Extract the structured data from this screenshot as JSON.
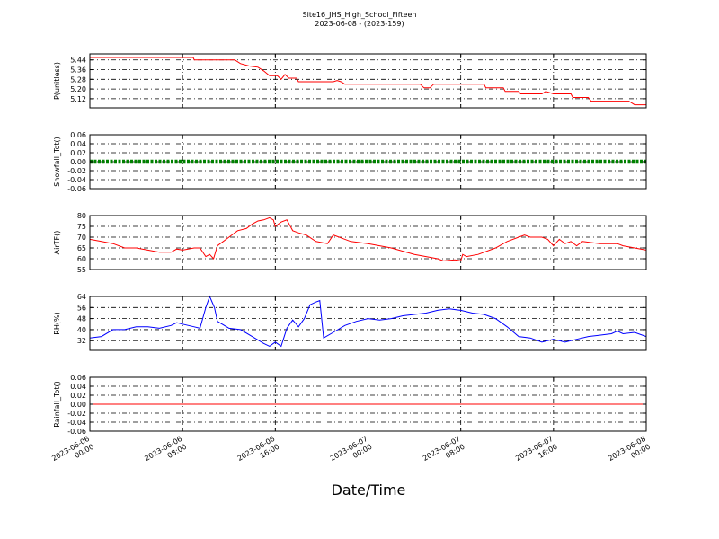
{
  "title": "Site16_JHS_High_School_Fifteen",
  "subtitle": "2023-06-08 - (2023-159)",
  "xlabel": "Date/Time",
  "colors": {
    "red": "#ff0000",
    "green": "#008000",
    "blue": "#0000ff",
    "axes": "#000000"
  },
  "chart_data": {
    "type": "line",
    "x_axis": {
      "start": "2023-06-06 00:00",
      "end": "2023-06-08 00:00",
      "tick_labels": [
        [
          "2023-06-06",
          "00:00"
        ],
        [
          "2023-06-06",
          "08:00"
        ],
        [
          "2023-06-06",
          "16:00"
        ],
        [
          "2023-06-07",
          "00:00"
        ],
        [
          "2023-06-07",
          "08:00"
        ],
        [
          "2023-06-07",
          "16:00"
        ],
        [
          "2023-06-08",
          "00:00"
        ]
      ]
    },
    "panels": [
      {
        "ylabel": "P(unitless)",
        "ylim": [
          5.045,
          5.49
        ],
        "yticks": [
          "5.44",
          "5.36",
          "5.28",
          "5.20",
          "5.12"
        ],
        "grid": true,
        "series": {
          "color": "#ff0000",
          "points": [
            [
              "2023-06-06 00:00",
              5.46
            ],
            [
              "2023-06-06 08:55",
              5.46
            ],
            [
              "2023-06-06 09:00",
              5.44
            ],
            [
              "2023-06-06 12:30",
              5.44
            ],
            [
              "2023-06-06 13:00",
              5.41
            ],
            [
              "2023-06-06 13:45",
              5.39
            ],
            [
              "2023-06-06 14:30",
              5.38
            ],
            [
              "2023-06-06 15:00",
              5.35
            ],
            [
              "2023-06-06 15:30",
              5.31
            ],
            [
              "2023-06-06 16:10",
              5.31
            ],
            [
              "2023-06-06 16:30",
              5.28
            ],
            [
              "2023-06-06 16:50",
              5.32
            ],
            [
              "2023-06-06 17:10",
              5.29
            ],
            [
              "2023-06-06 17:50",
              5.29
            ],
            [
              "2023-06-06 18:00",
              5.26
            ],
            [
              "2023-06-06 21:00",
              5.26
            ],
            [
              "2023-06-06 21:20",
              5.27
            ],
            [
              "2023-06-06 21:40",
              5.26
            ],
            [
              "2023-06-06 22:00",
              5.24
            ],
            [
              "2023-06-07 04:30",
              5.24
            ],
            [
              "2023-06-07 04:50",
              5.21
            ],
            [
              "2023-06-07 05:20",
              5.21
            ],
            [
              "2023-06-07 05:40",
              5.24
            ],
            [
              "2023-06-07 10:00",
              5.24
            ],
            [
              "2023-06-07 10:10",
              5.21
            ],
            [
              "2023-06-07 11:40",
              5.21
            ],
            [
              "2023-06-07 11:50",
              5.18
            ],
            [
              "2023-06-07 13:00",
              5.18
            ],
            [
              "2023-06-07 13:10",
              5.16
            ],
            [
              "2023-06-07 15:00",
              5.16
            ],
            [
              "2023-06-07 15:20",
              5.18
            ],
            [
              "2023-06-07 16:00",
              5.16
            ],
            [
              "2023-06-07 17:30",
              5.16
            ],
            [
              "2023-06-07 17:40",
              5.13
            ],
            [
              "2023-06-07 19:00",
              5.13
            ],
            [
              "2023-06-07 19:15",
              5.1
            ],
            [
              "2023-06-07 22:30",
              5.1
            ],
            [
              "2023-06-07 23:00",
              5.07
            ],
            [
              "2023-06-08 00:00",
              5.07
            ]
          ]
        }
      },
      {
        "ylabel": "Snowfall_Tot()",
        "ylim": [
          -0.06,
          0.06
        ],
        "yticks": [
          "0.06",
          "0.04",
          "0.02",
          "0.00",
          "-0.02",
          "-0.04",
          "-0.06"
        ],
        "grid": true,
        "series": {
          "color": "#008000",
          "style": "markers",
          "points": [
            [
              "2023-06-06 00:00",
              0.0
            ],
            [
              "2023-06-08 00:00",
              0.0
            ]
          ]
        }
      },
      {
        "ylabel": "AirTF()",
        "ylim": [
          55,
          80
        ],
        "yticks": [
          "80",
          "75",
          "70",
          "65",
          "60",
          "55"
        ],
        "grid": true,
        "series": {
          "color": "#ff0000",
          "points": [
            [
              "2023-06-06 00:00",
              69
            ],
            [
              "2023-06-06 01:00",
              68
            ],
            [
              "2023-06-06 02:00",
              67
            ],
            [
              "2023-06-06 03:00",
              65
            ],
            [
              "2023-06-06 04:00",
              65
            ],
            [
              "2023-06-06 05:00",
              64
            ],
            [
              "2023-06-06 06:00",
              63
            ],
            [
              "2023-06-06 07:00",
              63
            ],
            [
              "2023-06-06 07:30",
              64.5
            ],
            [
              "2023-06-06 08:00",
              64
            ],
            [
              "2023-06-06 09:00",
              65
            ],
            [
              "2023-06-06 09:30",
              65
            ],
            [
              "2023-06-06 10:00",
              61
            ],
            [
              "2023-06-06 10:20",
              62
            ],
            [
              "2023-06-06 10:40",
              60
            ],
            [
              "2023-06-06 11:00",
              66
            ],
            [
              "2023-06-06 12:00",
              70
            ],
            [
              "2023-06-06 12:45",
              73
            ],
            [
              "2023-06-06 13:30",
              74
            ],
            [
              "2023-06-06 14:00",
              76
            ],
            [
              "2023-06-06 14:30",
              77.5
            ],
            [
              "2023-06-06 15:00",
              78
            ],
            [
              "2023-06-06 15:30",
              79
            ],
            [
              "2023-06-06 15:50",
              78
            ],
            [
              "2023-06-06 16:00",
              75
            ],
            [
              "2023-06-06 16:30",
              77
            ],
            [
              "2023-06-06 17:00",
              78
            ],
            [
              "2023-06-06 17:30",
              73
            ],
            [
              "2023-06-06 18:00",
              72
            ],
            [
              "2023-06-06 18:40",
              71
            ],
            [
              "2023-06-06 19:30",
              68
            ],
            [
              "2023-06-06 20:30",
              67
            ],
            [
              "2023-06-06 21:00",
              71
            ],
            [
              "2023-06-06 21:30",
              70
            ],
            [
              "2023-06-06 22:30",
              68
            ],
            [
              "2023-06-07 00:00",
              67
            ],
            [
              "2023-06-07 01:00",
              66
            ],
            [
              "2023-06-07 02:00",
              65
            ],
            [
              "2023-06-07 04:00",
              62
            ],
            [
              "2023-06-07 06:00",
              60
            ],
            [
              "2023-06-07 06:30",
              59
            ],
            [
              "2023-06-07 07:30",
              59.5
            ],
            [
              "2023-06-07 08:00",
              59
            ],
            [
              "2023-06-07 08:10",
              62
            ],
            [
              "2023-06-07 08:30",
              61
            ],
            [
              "2023-06-07 09:30",
              62
            ],
            [
              "2023-06-07 11:00",
              65
            ],
            [
              "2023-06-07 12:00",
              68
            ],
            [
              "2023-06-07 13:00",
              70
            ],
            [
              "2023-06-07 13:30",
              71
            ],
            [
              "2023-06-07 14:00",
              70
            ],
            [
              "2023-06-07 15:00",
              70
            ],
            [
              "2023-06-07 15:30",
              69
            ],
            [
              "2023-06-07 16:00",
              66
            ],
            [
              "2023-06-07 16:30",
              69
            ],
            [
              "2023-06-07 17:00",
              67
            ],
            [
              "2023-06-07 17:30",
              68
            ],
            [
              "2023-06-07 18:00",
              66
            ],
            [
              "2023-06-07 18:30",
              68
            ],
            [
              "2023-06-07 20:00",
              67
            ],
            [
              "2023-06-07 21:30",
              67
            ],
            [
              "2023-06-07 22:00",
              66
            ],
            [
              "2023-06-07 23:00",
              65
            ],
            [
              "2023-06-08 00:00",
              64
            ]
          ]
        }
      },
      {
        "ylabel": "RH(%)",
        "ylim": [
          25,
          64
        ],
        "yticks": [
          "64",
          "56",
          "48",
          "40",
          "32"
        ],
        "grid": true,
        "series": {
          "color": "#0000ff",
          "points": [
            [
              "2023-06-06 00:00",
              34
            ],
            [
              "2023-06-06 01:00",
              35
            ],
            [
              "2023-06-06 02:00",
              40
            ],
            [
              "2023-06-06 03:00",
              40
            ],
            [
              "2023-06-06 04:00",
              42
            ],
            [
              "2023-06-06 05:00",
              42
            ],
            [
              "2023-06-06 06:00",
              41
            ],
            [
              "2023-06-06 07:00",
              43
            ],
            [
              "2023-06-06 07:30",
              45
            ],
            [
              "2023-06-06 08:00",
              44
            ],
            [
              "2023-06-06 09:00",
              42
            ],
            [
              "2023-06-06 09:30",
              41
            ],
            [
              "2023-06-06 10:00",
              56
            ],
            [
              "2023-06-06 10:20",
              64
            ],
            [
              "2023-06-06 10:45",
              56
            ],
            [
              "2023-06-06 11:00",
              46
            ],
            [
              "2023-06-06 12:00",
              41
            ],
            [
              "2023-06-06 13:00",
              40
            ],
            [
              "2023-06-06 14:00",
              35
            ],
            [
              "2023-06-06 15:00",
              30
            ],
            [
              "2023-06-06 15:30",
              28
            ],
            [
              "2023-06-06 16:00",
              31
            ],
            [
              "2023-06-06 16:30",
              28
            ],
            [
              "2023-06-06 17:00",
              41
            ],
            [
              "2023-06-06 17:30",
              47
            ],
            [
              "2023-06-06 18:00",
              42
            ],
            [
              "2023-06-06 18:30",
              48
            ],
            [
              "2023-06-06 19:00",
              58
            ],
            [
              "2023-06-06 19:30",
              60
            ],
            [
              "2023-06-06 19:50",
              61
            ],
            [
              "2023-06-06 20:10",
              34
            ],
            [
              "2023-06-06 21:00",
              38
            ],
            [
              "2023-06-06 22:00",
              43
            ],
            [
              "2023-06-06 23:00",
              46
            ],
            [
              "2023-06-07 00:00",
              48
            ],
            [
              "2023-06-07 01:00",
              47
            ],
            [
              "2023-06-07 02:00",
              48
            ],
            [
              "2023-06-07 03:00",
              50
            ],
            [
              "2023-06-07 04:00",
              51
            ],
            [
              "2023-06-07 05:00",
              52
            ],
            [
              "2023-06-07 06:00",
              54
            ],
            [
              "2023-06-07 07:00",
              55
            ],
            [
              "2023-06-07 08:00",
              54
            ],
            [
              "2023-06-07 09:00",
              52
            ],
            [
              "2023-06-07 10:00",
              51
            ],
            [
              "2023-06-07 11:00",
              48
            ],
            [
              "2023-06-07 12:00",
              42
            ],
            [
              "2023-06-07 13:00",
              35
            ],
            [
              "2023-06-07 14:00",
              34
            ],
            [
              "2023-06-07 15:00",
              31
            ],
            [
              "2023-06-07 16:00",
              33
            ],
            [
              "2023-06-07 17:00",
              31
            ],
            [
              "2023-06-07 18:00",
              33
            ],
            [
              "2023-06-07 19:00",
              35
            ],
            [
              "2023-06-07 20:00",
              36
            ],
            [
              "2023-06-07 21:00",
              37
            ],
            [
              "2023-06-07 21:30",
              39
            ],
            [
              "2023-06-07 22:00",
              37
            ],
            [
              "2023-06-07 23:00",
              38
            ],
            [
              "2023-06-08 00:00",
              35
            ]
          ]
        }
      },
      {
        "ylabel": "Rainfall_Tot()",
        "ylim": [
          -0.06,
          0.06
        ],
        "yticks": [
          "0.06",
          "0.04",
          "0.02",
          "0.00",
          "-0.02",
          "-0.04",
          "-0.06"
        ],
        "grid": true,
        "series": {
          "color": "#ff0000",
          "points": [
            [
              "2023-06-06 00:00",
              0.0
            ],
            [
              "2023-06-08 00:00",
              0.0
            ]
          ]
        }
      }
    ]
  }
}
